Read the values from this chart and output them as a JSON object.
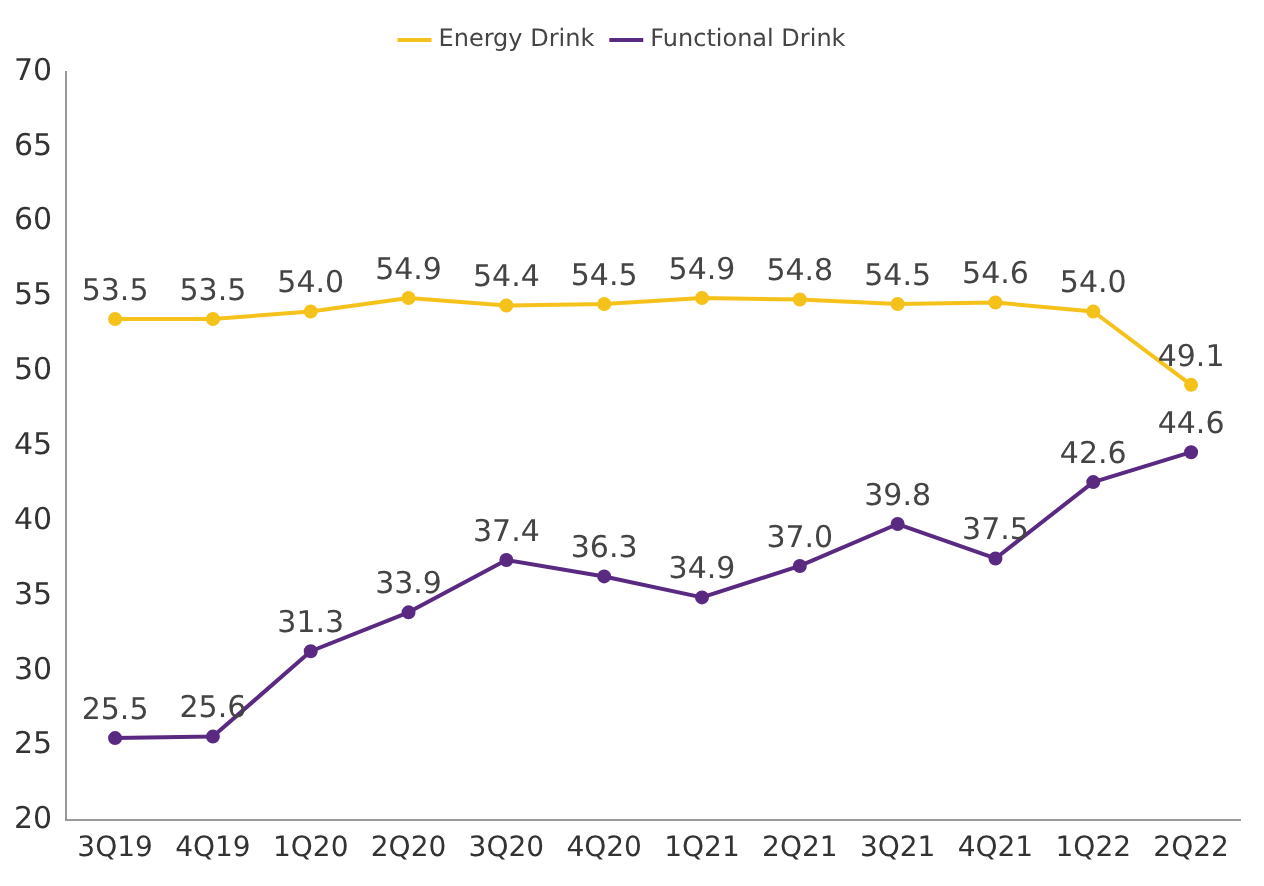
{
  "chart_data": {
    "type": "line",
    "categories": [
      "3Q19",
      "4Q19",
      "1Q20",
      "2Q20",
      "3Q20",
      "4Q20",
      "1Q21",
      "2Q21",
      "3Q21",
      "4Q21",
      "1Q22",
      "2Q22"
    ],
    "series": [
      {
        "name": "Energy Drink",
        "color": "#f5c21b",
        "values": [
          53.5,
          53.5,
          54.0,
          54.9,
          54.4,
          54.5,
          54.9,
          54.8,
          54.5,
          54.6,
          54.0,
          49.1
        ],
        "value_labels": [
          "53.5",
          "53.5",
          "54.0",
          "54.9",
          "54.4",
          "54.5",
          "54.9",
          "54.8",
          "54.5",
          "54.6",
          "54.0",
          "49.1"
        ]
      },
      {
        "name": "Functional Drink",
        "color": "#5a2a82",
        "values": [
          25.5,
          25.6,
          31.3,
          33.9,
          37.4,
          36.3,
          34.9,
          37.0,
          39.8,
          37.5,
          42.6,
          44.6
        ],
        "value_labels": [
          "25.5",
          "25.6",
          "31.3",
          "33.9",
          "37.4",
          "36.3",
          "34.9",
          "37.0",
          "39.8",
          "37.5",
          "42.6",
          "44.6"
        ]
      }
    ],
    "ylim": [
      20,
      70
    ],
    "yticks": [
      20,
      25,
      30,
      35,
      40,
      45,
      50,
      55,
      60,
      65,
      70
    ],
    "grid": false,
    "legend": "top",
    "marker": "circle",
    "line_style": "solid"
  }
}
